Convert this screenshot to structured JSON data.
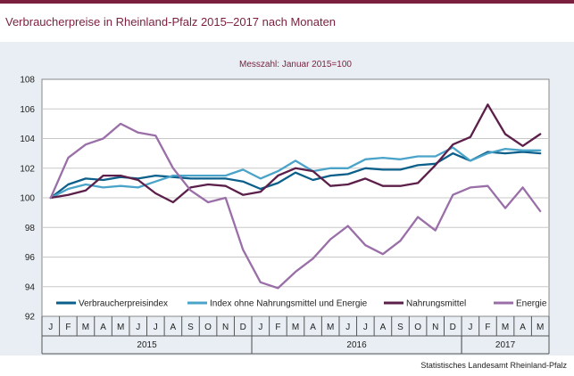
{
  "header": {
    "title": "Verbraucherpreise in Rheinland-Pfalz 2015–2017 nach Monaten"
  },
  "footer": {
    "source": "Statistisches Landesamt Rheinland-Pfalz"
  },
  "chart_data": {
    "type": "line",
    "title": "Verbraucherpreise in Rheinland-Pfalz 2015–2017 nach Monaten",
    "subtitle": "Messzahl: Januar 2015=100",
    "xlabel": "",
    "ylabel": "",
    "ylim": [
      92,
      108
    ],
    "yticks": [
      92,
      94,
      96,
      98,
      100,
      102,
      104,
      106,
      108
    ],
    "grid": true,
    "legend": "bottom-inside",
    "months": [
      "J",
      "F",
      "M",
      "A",
      "M",
      "J",
      "J",
      "A",
      "S",
      "O",
      "N",
      "D",
      "J",
      "F",
      "M",
      "A",
      "M",
      "J",
      "J",
      "A",
      "S",
      "O",
      "N",
      "D",
      "J",
      "F",
      "M",
      "A",
      "M"
    ],
    "years": [
      {
        "label": "2015",
        "start": 0,
        "end": 11
      },
      {
        "label": "2016",
        "start": 12,
        "end": 23
      },
      {
        "label": "2017",
        "start": 24,
        "end": 28
      }
    ],
    "series": [
      {
        "name": "Verbraucherpreisindex",
        "color": "#0b5f8a",
        "values": [
          100.0,
          100.9,
          101.3,
          101.2,
          101.4,
          101.3,
          101.5,
          101.4,
          101.3,
          101.3,
          101.3,
          101.1,
          100.6,
          101.0,
          101.7,
          101.2,
          101.5,
          101.6,
          102.0,
          101.9,
          101.9,
          102.2,
          102.3,
          103.0,
          102.5,
          103.1,
          103.0,
          103.1,
          103.0
        ]
      },
      {
        "name": "Index ohne Nahrungsmittel und Energie",
        "color": "#4aa3c8",
        "values": [
          100.0,
          100.6,
          100.9,
          100.7,
          100.8,
          100.7,
          101.1,
          101.5,
          101.5,
          101.5,
          101.5,
          101.9,
          101.3,
          101.8,
          102.5,
          101.8,
          102.0,
          102.0,
          102.6,
          102.7,
          102.6,
          102.8,
          102.8,
          103.4,
          102.5,
          103.0,
          103.3,
          103.2,
          103.2
        ]
      },
      {
        "name": "Nahrungsmittel",
        "color": "#5b1f4a",
        "values": [
          100.0,
          100.2,
          100.5,
          101.5,
          101.5,
          101.2,
          100.3,
          99.7,
          100.7,
          100.9,
          100.8,
          100.2,
          100.4,
          101.5,
          102.0,
          101.8,
          100.8,
          100.9,
          101.3,
          100.8,
          100.8,
          101.0,
          102.2,
          103.6,
          104.1,
          106.3,
          104.3,
          103.5,
          104.3
        ]
      },
      {
        "name": "Energie",
        "color": "#9a6fa8",
        "values": [
          100.0,
          102.7,
          103.6,
          104.0,
          105.0,
          104.4,
          104.2,
          102.0,
          100.5,
          99.7,
          100.0,
          96.5,
          94.3,
          93.9,
          95.0,
          95.9,
          97.2,
          98.1,
          96.8,
          96.2,
          97.1,
          98.7,
          97.8,
          100.2,
          100.7,
          100.8,
          99.3,
          100.7,
          99.1
        ]
      }
    ]
  }
}
